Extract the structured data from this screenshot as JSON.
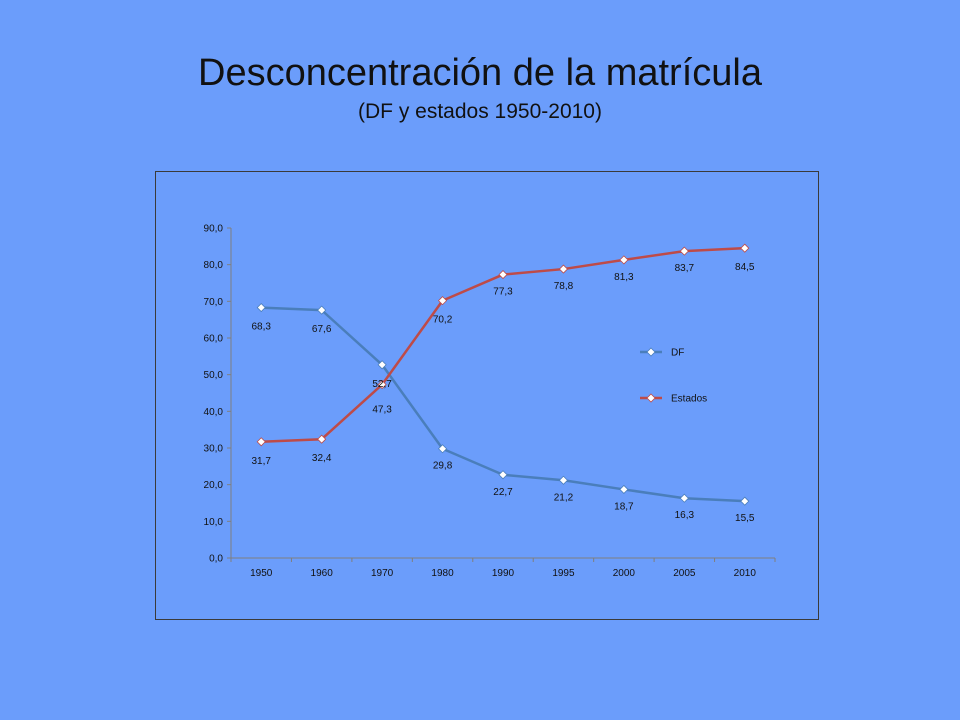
{
  "slide": {
    "title": "Desconcentración de la matrícula",
    "subtitle": "(DF y estados 1950-2010)"
  },
  "colors": {
    "background": "#6b9dfb",
    "df_line": "#4a7ebb",
    "estados_line": "#be4b48",
    "marker_fill": "#ffffff",
    "text": "#111111"
  },
  "chart_data": {
    "type": "line",
    "categories": [
      "1950",
      "1960",
      "1970",
      "1980",
      "1990",
      "1995",
      "2000",
      "2005",
      "2010"
    ],
    "series": [
      {
        "name": "DF",
        "values": [
          68.3,
          67.6,
          52.7,
          29.8,
          22.7,
          21.2,
          18.7,
          16.3,
          15.5
        ],
        "labels": [
          "68,3",
          "67,6",
          "52,7",
          "29,8",
          "22,7",
          "21,2",
          "18,7",
          "16,3",
          "15,5"
        ]
      },
      {
        "name": "Estados",
        "values": [
          31.7,
          32.4,
          47.3,
          70.2,
          77.3,
          78.8,
          81.3,
          83.7,
          84.5
        ],
        "labels": [
          "31,7",
          "32,4",
          "47,3",
          "70,2",
          "77,3",
          "78,8",
          "81,3",
          "83,7",
          "84,5"
        ]
      }
    ],
    "ylim": [
      0,
      90
    ],
    "yticks": [
      0,
      10,
      20,
      30,
      40,
      50,
      60,
      70,
      80,
      90
    ],
    "ytick_labels": [
      "0,0",
      "10,0",
      "20,0",
      "30,0",
      "40,0",
      "50,0",
      "60,0",
      "70,0",
      "80,0",
      "90,0"
    ],
    "legend": "right",
    "grid": false
  }
}
